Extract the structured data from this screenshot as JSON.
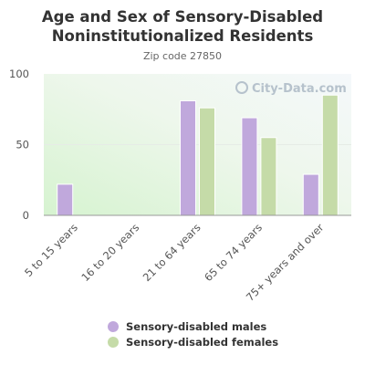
{
  "chart_data": {
    "type": "bar",
    "title": "Age and Sex of Sensory-Disabled\nNoninstitutionalized Residents",
    "subtitle": "Zip code 27850",
    "categories": [
      "5 to 15 years",
      "16 to 20 years",
      "21 to 64 years",
      "65 to 74 years",
      "75+ years and over"
    ],
    "series": [
      {
        "name": "Sensory-disabled males",
        "color": "#c0a8dc",
        "values": [
          22,
          0,
          81,
          69,
          29
        ]
      },
      {
        "name": "Sensory-disabled females",
        "color": "#c5dba8",
        "values": [
          0,
          0,
          76,
          55,
          85
        ]
      }
    ],
    "yticks": [
      0,
      50,
      100
    ],
    "ylim": [
      0,
      100
    ],
    "legend_position": "bottom",
    "watermark": "City-Data.com"
  }
}
